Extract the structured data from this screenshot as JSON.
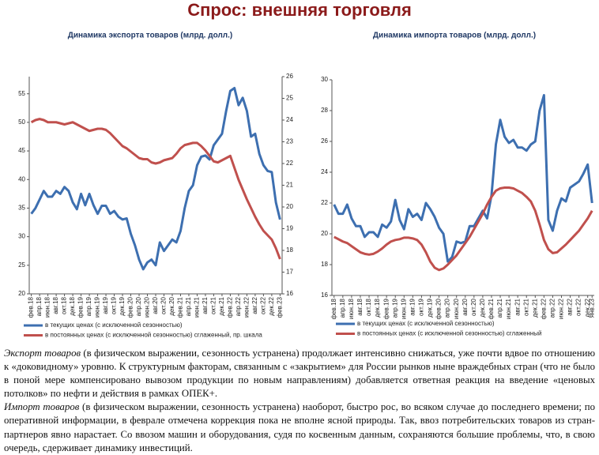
{
  "header": {
    "title": "Спрос: внешняя торговля"
  },
  "chart_data": [
    {
      "type": "line",
      "title": "Динамика экспорта товаров (млрд. долл.)",
      "categories": [
        "фев.18",
        null,
        "апр.18",
        null,
        "июн.18",
        null,
        "авг.18",
        null,
        "окт.18",
        null,
        "дек.18",
        null,
        "фев.19",
        null,
        "апр.19",
        null,
        "июн.19",
        null,
        "авг.19",
        null,
        "окт.19",
        null,
        "дек.19",
        null,
        "фев.20",
        null,
        "апр.20",
        null,
        "июн.20",
        null,
        "авг.20",
        null,
        "окт.20",
        null,
        "дек.20",
        null,
        "фев.21",
        null,
        "апр.21",
        null,
        "июн.21",
        null,
        "авг.21",
        null,
        "окт.21",
        null,
        "дек.21",
        null,
        "фев.22",
        null,
        "апр.22",
        null,
        "июн.22",
        null,
        "авг.22",
        null,
        "окт.22",
        null,
        "дек.22",
        null,
        "фев.23"
      ],
      "series": [
        {
          "name": "в текущих ценах (с исключенной сезонностью)",
          "color": "#3d6fb0",
          "axis": "y",
          "values": [
            34,
            35,
            36.5,
            38,
            37,
            37,
            38,
            37.5,
            38.7,
            38,
            36,
            34.8,
            37.5,
            35.5,
            37.5,
            35.5,
            34,
            35.4,
            35.4,
            34,
            34.5,
            33.5,
            33,
            33.2,
            30.5,
            28.5,
            26,
            24.3,
            25.5,
            26,
            25,
            29,
            27.5,
            28.5,
            29.5,
            29,
            31,
            35,
            38,
            39,
            42.5,
            44,
            44.2,
            43.5,
            46,
            47,
            48,
            52,
            55.5,
            56,
            53,
            54.3,
            52,
            47.5,
            48,
            44.5,
            42.5,
            41.5,
            41.3,
            36,
            33
          ]
        },
        {
          "name": "в постоянных ценах (с исключенной сезонностью) сглаженный, пр. шкала",
          "color": "#c0504d",
          "axis": "y2",
          "values": [
            23.9,
            24.0,
            24.05,
            24.0,
            23.9,
            23.9,
            23.9,
            23.85,
            23.8,
            23.85,
            23.9,
            23.8,
            23.7,
            23.6,
            23.5,
            23.55,
            23.6,
            23.6,
            23.55,
            23.4,
            23.2,
            23.0,
            22.8,
            22.7,
            22.55,
            22.4,
            22.25,
            22.2,
            22.2,
            22.05,
            22.0,
            22.05,
            22.15,
            22.2,
            22.25,
            22.45,
            22.7,
            22.85,
            22.9,
            22.95,
            22.95,
            22.8,
            22.6,
            22.35,
            22.1,
            22.05,
            22.15,
            22.25,
            22.35,
            21.8,
            21.25,
            20.8,
            20.35,
            19.95,
            19.55,
            19.2,
            18.9,
            18.7,
            18.5,
            18.1,
            17.6
          ]
        }
      ],
      "ylim": [
        20,
        58
      ],
      "yticks": [
        20,
        25,
        30,
        35,
        40,
        45,
        50,
        55
      ],
      "y2lim": [
        16,
        26
      ],
      "y2ticks": [
        16,
        17,
        18,
        19,
        20,
        21,
        22,
        23,
        24,
        25,
        26
      ],
      "legend": "bottom-left"
    },
    {
      "type": "line",
      "title": "Динамика импорта товаров (млрд. долл.)",
      "categories": [
        "фев.18",
        null,
        "апр.18",
        null,
        "июн.18",
        null,
        "авг.18",
        null,
        "окт.18",
        null,
        "дек.18",
        null,
        "фев.19",
        null,
        "апр.19",
        null,
        "июн.19",
        null,
        "авг.19",
        null,
        "окт.19",
        null,
        "дек.19",
        null,
        "фев.20",
        null,
        "апр.20",
        null,
        "июн.20",
        null,
        "авг.20",
        null,
        "окт.20",
        null,
        "дек.20",
        null,
        "фев.21",
        null,
        "апр.21",
        null,
        "июн.21",
        null,
        "авг.21",
        null,
        "окт.21",
        null,
        "дек.21",
        null,
        "фев.22",
        null,
        "апр.22",
        null,
        "июн.22",
        null,
        "авг.22",
        null,
        "окт.22",
        null,
        "дек.22",
        "янв.23"
      ],
      "series": [
        {
          "name": "в текущих ценах (с исключенной сезонностью)",
          "color": "#3d6fb0",
          "axis": "y",
          "values": [
            21.9,
            21.3,
            21.3,
            21.9,
            21.0,
            20.5,
            20.5,
            19.8,
            20.1,
            20.1,
            19.8,
            20.6,
            20.4,
            20.8,
            22.2,
            20.9,
            20.3,
            21.6,
            21.1,
            21.3,
            20.9,
            22.0,
            21.6,
            21.1,
            20.4,
            20.0,
            18.2,
            18.5,
            19.5,
            19.4,
            19.5,
            20.5,
            20.5,
            21.0,
            21.5,
            21.0,
            22.5,
            25.8,
            27.4,
            26.3,
            25.9,
            26.1,
            25.6,
            25.6,
            25.4,
            25.8,
            26.0,
            28.0,
            29.0,
            20.9,
            20.2,
            21.5,
            22.3,
            22.1,
            23.0,
            23.2,
            23.4,
            23.9,
            24.5,
            22.0
          ]
        },
        {
          "name": "в постоянных ценах (с исключенной сезонностью) сглаженный",
          "color": "#c0504d",
          "axis": "y",
          "values": [
            19.8,
            19.65,
            19.5,
            19.4,
            19.2,
            19.0,
            18.8,
            18.7,
            18.65,
            18.7,
            18.85,
            19.05,
            19.3,
            19.5,
            19.6,
            19.65,
            19.75,
            19.75,
            19.7,
            19.6,
            19.3,
            18.8,
            18.2,
            17.8,
            17.65,
            17.75,
            18.0,
            18.3,
            18.6,
            19.0,
            19.4,
            19.8,
            20.3,
            20.8,
            21.3,
            21.9,
            22.4,
            22.8,
            22.95,
            23.0,
            23.0,
            22.95,
            22.8,
            22.65,
            22.4,
            22.1,
            21.5,
            20.6,
            19.6,
            19.0,
            18.75,
            18.8,
            19.05,
            19.3,
            19.6,
            19.9,
            20.2,
            20.6,
            21.0,
            21.5
          ]
        }
      ],
      "ylim": [
        16,
        30
      ],
      "yticks": [
        16,
        18,
        20,
        22,
        24,
        26,
        28,
        30
      ],
      "legend": "bottom-left"
    }
  ],
  "text": {
    "paragraphs": [
      {
        "lead": "Экспорт товаров",
        "body": " (в физическом выражении, сезонность устранена) продолжает интенсивно снижаться, уже почти вдвое по отношению к «доковидному» уровню. К структурным факторам, связанным с «закрытием» для России рынков ныне враждебных стран (что не было в поной мере компенсировано вывозом продукции по новым направлениям) добавляется ответная реакция на введение «ценовых потолков» по нефти и действия в рамках ОПЕК+."
      },
      {
        "lead": "Импорт товаров",
        "body": " (в физическом выражении, сезонность устранена) наоборот, быстро рос, во всяком случае до последнего времени; по оперативной информации, в феврале отмечена коррекция пока не вполне ясной природы. Так, ввоз потребительских товаров из стран-партнеров явно нарастает. Со ввозом машин и оборудования, судя по косвенным данным, сохраняются большие проблемы, что, в свою очередь, сдерживает динамику инвестиций."
      }
    ]
  }
}
